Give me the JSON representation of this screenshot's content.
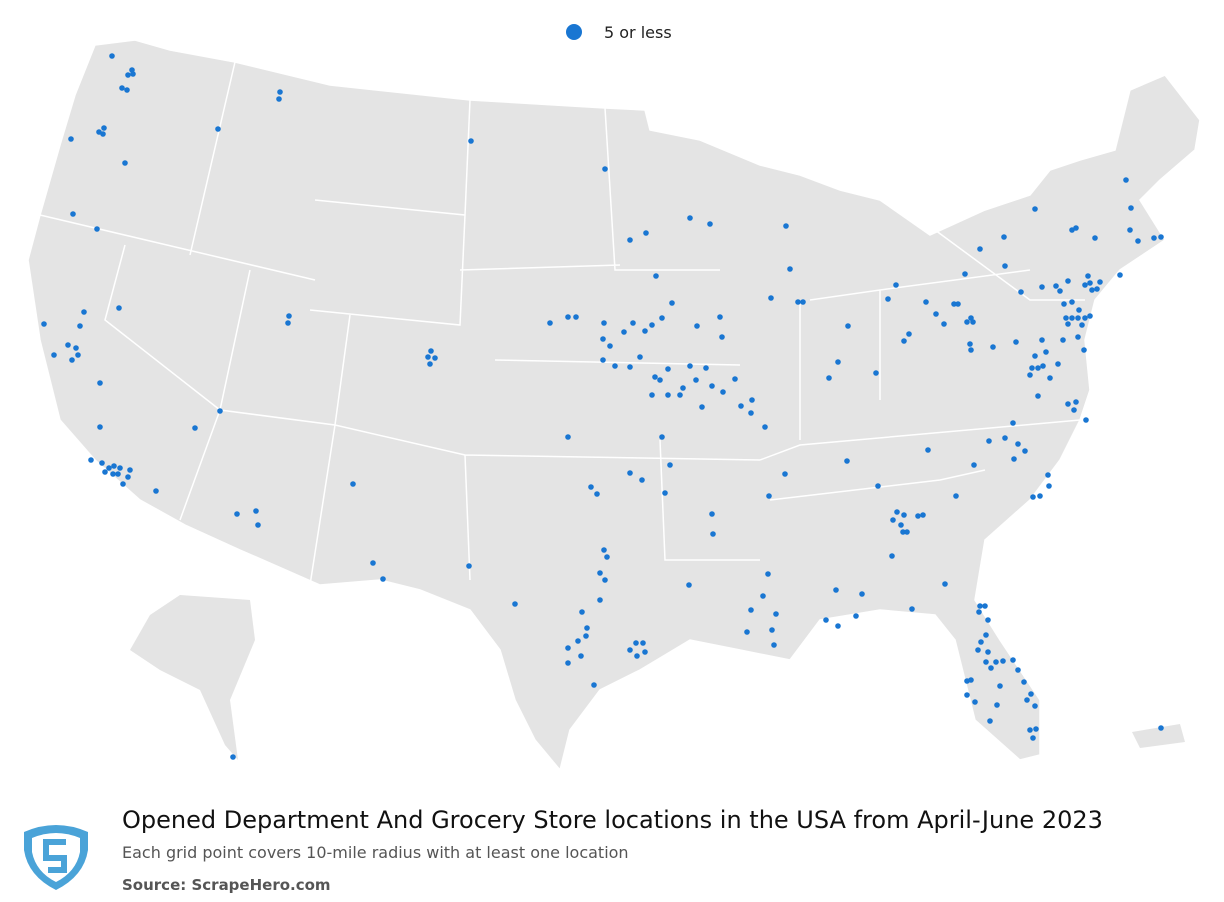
{
  "legend": {
    "label": "5 or less"
  },
  "footer": {
    "title": "Opened Department And Grocery Store locations in the USA from April-June 2023",
    "subtitle": "Each grid point covers 10-mile radius with at least one location",
    "source": "Source: ScrapeHero.com"
  }
}
